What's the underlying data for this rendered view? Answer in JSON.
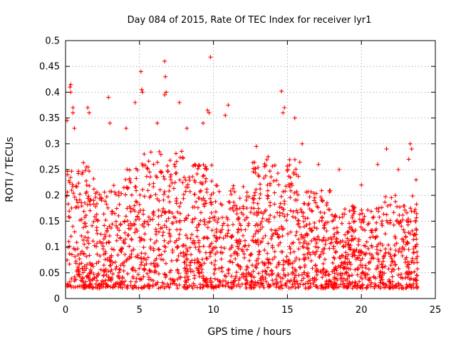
{
  "chart_data": {
    "type": "scatter",
    "title": "Day 084 of 2015, Rate Of TEC Index for receiver lyr1",
    "xlabel": "GPS time / hours",
    "ylabel": "ROTI / TECUs",
    "xlim": [
      0,
      25
    ],
    "ylim": [
      0,
      0.5
    ],
    "xticks": [
      0,
      5,
      10,
      15,
      20,
      25
    ],
    "yticks": [
      0,
      0.05,
      0.1,
      0.15,
      0.2,
      0.25,
      0.3,
      0.35,
      0.4,
      0.45,
      0.5
    ],
    "grid": true,
    "marker": "+",
    "color": "#ff0000",
    "series": [
      {
        "points": [
          [
            0.3,
            0.41
          ],
          [
            0.35,
            0.415
          ],
          [
            0.35,
            0.4
          ],
          [
            0.5,
            0.37
          ],
          [
            0.5,
            0.36
          ],
          [
            1.5,
            0.37
          ],
          [
            1.6,
            0.36
          ],
          [
            2.9,
            0.39
          ],
          [
            4.7,
            0.38
          ],
          [
            5.1,
            0.44
          ],
          [
            5.2,
            0.4
          ],
          [
            5.15,
            0.405
          ],
          [
            6.7,
            0.46
          ],
          [
            6.75,
            0.43
          ],
          [
            6.7,
            0.395
          ],
          [
            6.8,
            0.4
          ],
          [
            7.7,
            0.38
          ],
          [
            9.8,
            0.468
          ],
          [
            9.7,
            0.36
          ],
          [
            9.6,
            0.365
          ],
          [
            11.0,
            0.375
          ],
          [
            10.8,
            0.355
          ],
          [
            14.6,
            0.402
          ],
          [
            14.8,
            0.37
          ],
          [
            14.7,
            0.36
          ],
          [
            15.5,
            0.35
          ],
          [
            23.3,
            0.3
          ],
          [
            23.4,
            0.29
          ],
          [
            23.2,
            0.27
          ],
          [
            21.7,
            0.29
          ],
          [
            21.1,
            0.26
          ],
          [
            12.9,
            0.295
          ],
          [
            13.7,
            0.275
          ],
          [
            0.1,
            0.345
          ],
          [
            0.6,
            0.33
          ],
          [
            3.0,
            0.34
          ],
          [
            4.1,
            0.33
          ],
          [
            6.2,
            0.34
          ],
          [
            8.2,
            0.33
          ],
          [
            9.3,
            0.34
          ],
          [
            16.0,
            0.3
          ],
          [
            17.1,
            0.26
          ],
          [
            18.5,
            0.25
          ],
          [
            20.0,
            0.22
          ],
          [
            22.5,
            0.25
          ],
          [
            23.7,
            0.23
          ]
        ]
      }
    ]
  }
}
